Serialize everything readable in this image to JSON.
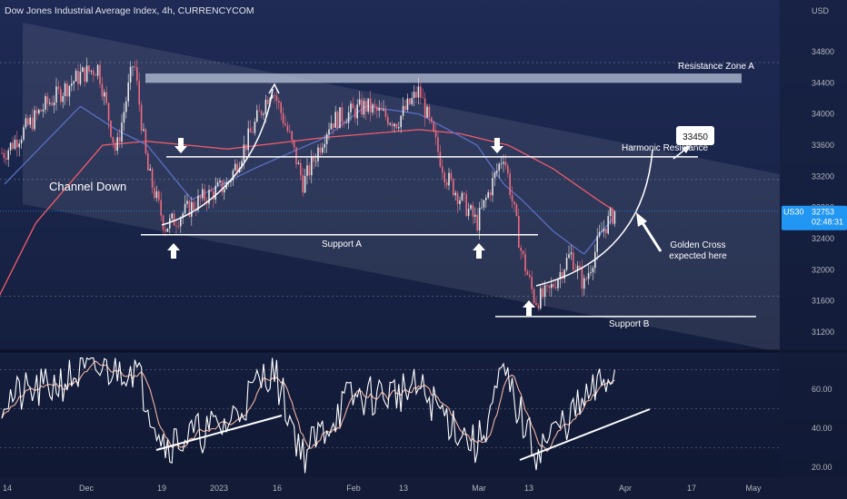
{
  "header": {
    "title": "Dow Jones Industrial Average Index, 4h, CURRENCYCOM",
    "currency": "USD"
  },
  "price_axis": {
    "ticks": [
      "34800",
      "34400",
      "34000",
      "33600",
      "33200",
      "32800",
      "32400",
      "32000",
      "31600",
      "31200"
    ],
    "tick_values": [
      34800,
      34400,
      34000,
      33600,
      33200,
      32800,
      32400,
      32000,
      31600,
      31200
    ],
    "symbol": "US30",
    "last_price": "32753",
    "countdown": "02:48:31",
    "price_label_color": "#2196f3"
  },
  "rsi_axis": {
    "ticks": [
      "60.00",
      "40.00",
      "20.00"
    ],
    "tick_values": [
      60,
      40,
      20
    ],
    "levels": [
      70,
      50,
      30
    ]
  },
  "time_axis": {
    "labels": [
      "14",
      "Dec",
      "19",
      "2023",
      "16",
      "Feb",
      "13",
      "Mar",
      "13",
      "Apr",
      "17",
      "May"
    ]
  },
  "annotations": {
    "resistance_zone": "Resistance Zone A",
    "harmonic_resistance": "Harmonic Resistance",
    "harmonic_value": "33450",
    "channel": "Channel Down",
    "support_a": "Support A",
    "support_b": "Support B",
    "golden_cross_line1": "Golden Cross",
    "golden_cross_line2": "expected here"
  },
  "colors": {
    "background": "#131d3b",
    "candle_up": "#e6e6e6",
    "candle_down": "#f06b7e",
    "ma_fast": "#5b6fc4",
    "ma_slow": "#ef5c6a",
    "rsi": "#ffffff",
    "rsi_ma": "#f0b3a3",
    "channel_fill": "#ffffff"
  },
  "chart_data": {
    "type": "candlestick",
    "timeframe": "4h",
    "y_range": [
      31000,
      35000
    ],
    "rsi_range": [
      17,
      76
    ],
    "price_path": [
      [
        "2022-11-14",
        33500
      ],
      [
        "2022-11-23",
        34100
      ],
      [
        "2022-12-01",
        34500
      ],
      [
        "2022-12-05",
        34600
      ],
      [
        "2022-12-09",
        33500
      ],
      [
        "2022-12-13",
        34700
      ],
      [
        "2022-12-16",
        33300
      ],
      [
        "2022-12-20",
        32550
      ],
      [
        "2022-12-28",
        32900
      ],
      [
        "2023-01-03",
        33100
      ],
      [
        "2023-01-13",
        34350
      ],
      [
        "2023-01-17",
        33700
      ],
      [
        "2023-01-20",
        33100
      ],
      [
        "2023-01-26",
        33900
      ],
      [
        "2023-02-03",
        34100
      ],
      [
        "2023-02-10",
        33900
      ],
      [
        "2023-02-15",
        34300
      ],
      [
        "2023-02-21",
        33200
      ],
      [
        "2023-02-28",
        32600
      ],
      [
        "2023-03-06",
        33500
      ],
      [
        "2023-03-10",
        32200
      ],
      [
        "2023-03-13",
        31600
      ],
      [
        "2023-03-16",
        31700
      ],
      [
        "2023-03-21",
        32200
      ],
      [
        "2023-03-24",
        31800
      ],
      [
        "2023-03-28",
        32500
      ],
      [
        "2023-03-31",
        32753
      ]
    ],
    "ma_fast": [
      [
        "2022-11-14",
        33100
      ],
      [
        "2022-12-01",
        34100
      ],
      [
        "2022-12-09",
        33800
      ],
      [
        "2022-12-16",
        33600
      ],
      [
        "2022-12-26",
        32900
      ],
      [
        "2023-01-09",
        33300
      ],
      [
        "2023-01-25",
        33700
      ],
      [
        "2023-02-03",
        34100
      ],
      [
        "2023-02-15",
        34000
      ],
      [
        "2023-02-28",
        33600
      ],
      [
        "2023-03-06",
        33100
      ],
      [
        "2023-03-10",
        32900
      ],
      [
        "2023-03-17",
        32500
      ],
      [
        "2023-03-24",
        32200
      ],
      [
        "2023-03-31",
        32700
      ]
    ],
    "ma_slow": [
      [
        "2022-11-07",
        31000
      ],
      [
        "2022-11-21",
        32600
      ],
      [
        "2022-12-06",
        33600
      ],
      [
        "2022-12-16",
        33650
      ],
      [
        "2023-01-03",
        33550
      ],
      [
        "2023-01-25",
        33700
      ],
      [
        "2023-02-15",
        33800
      ],
      [
        "2023-02-24",
        33750
      ],
      [
        "2023-03-07",
        33600
      ],
      [
        "2023-03-17",
        33300
      ],
      [
        "2023-03-27",
        32900
      ],
      [
        "2023-03-31",
        32750
      ]
    ],
    "rsi_path": [
      [
        "2022-11-14",
        55
      ],
      [
        "2022-11-23",
        60
      ],
      [
        "2022-12-01",
        68
      ],
      [
        "2022-12-13",
        72
      ],
      [
        "2022-12-20",
        32
      ],
      [
        "2023-01-03",
        42
      ],
      [
        "2023-01-13",
        72
      ],
      [
        "2023-01-20",
        26
      ],
      [
        "2023-01-30",
        55
      ],
      [
        "2023-02-15",
        60
      ],
      [
        "2023-02-28",
        30
      ],
      [
        "2023-03-06",
        68
      ],
      [
        "2023-03-13",
        28
      ],
      [
        "2023-03-21",
        46
      ],
      [
        "2023-03-31",
        70
      ]
    ],
    "resistance_zone_a": [
      34400,
      34520
    ],
    "harmonic_resistance": 33450,
    "support_a": 32450,
    "support_b": 31400,
    "last_price": 32753,
    "rsi_last": 70
  }
}
